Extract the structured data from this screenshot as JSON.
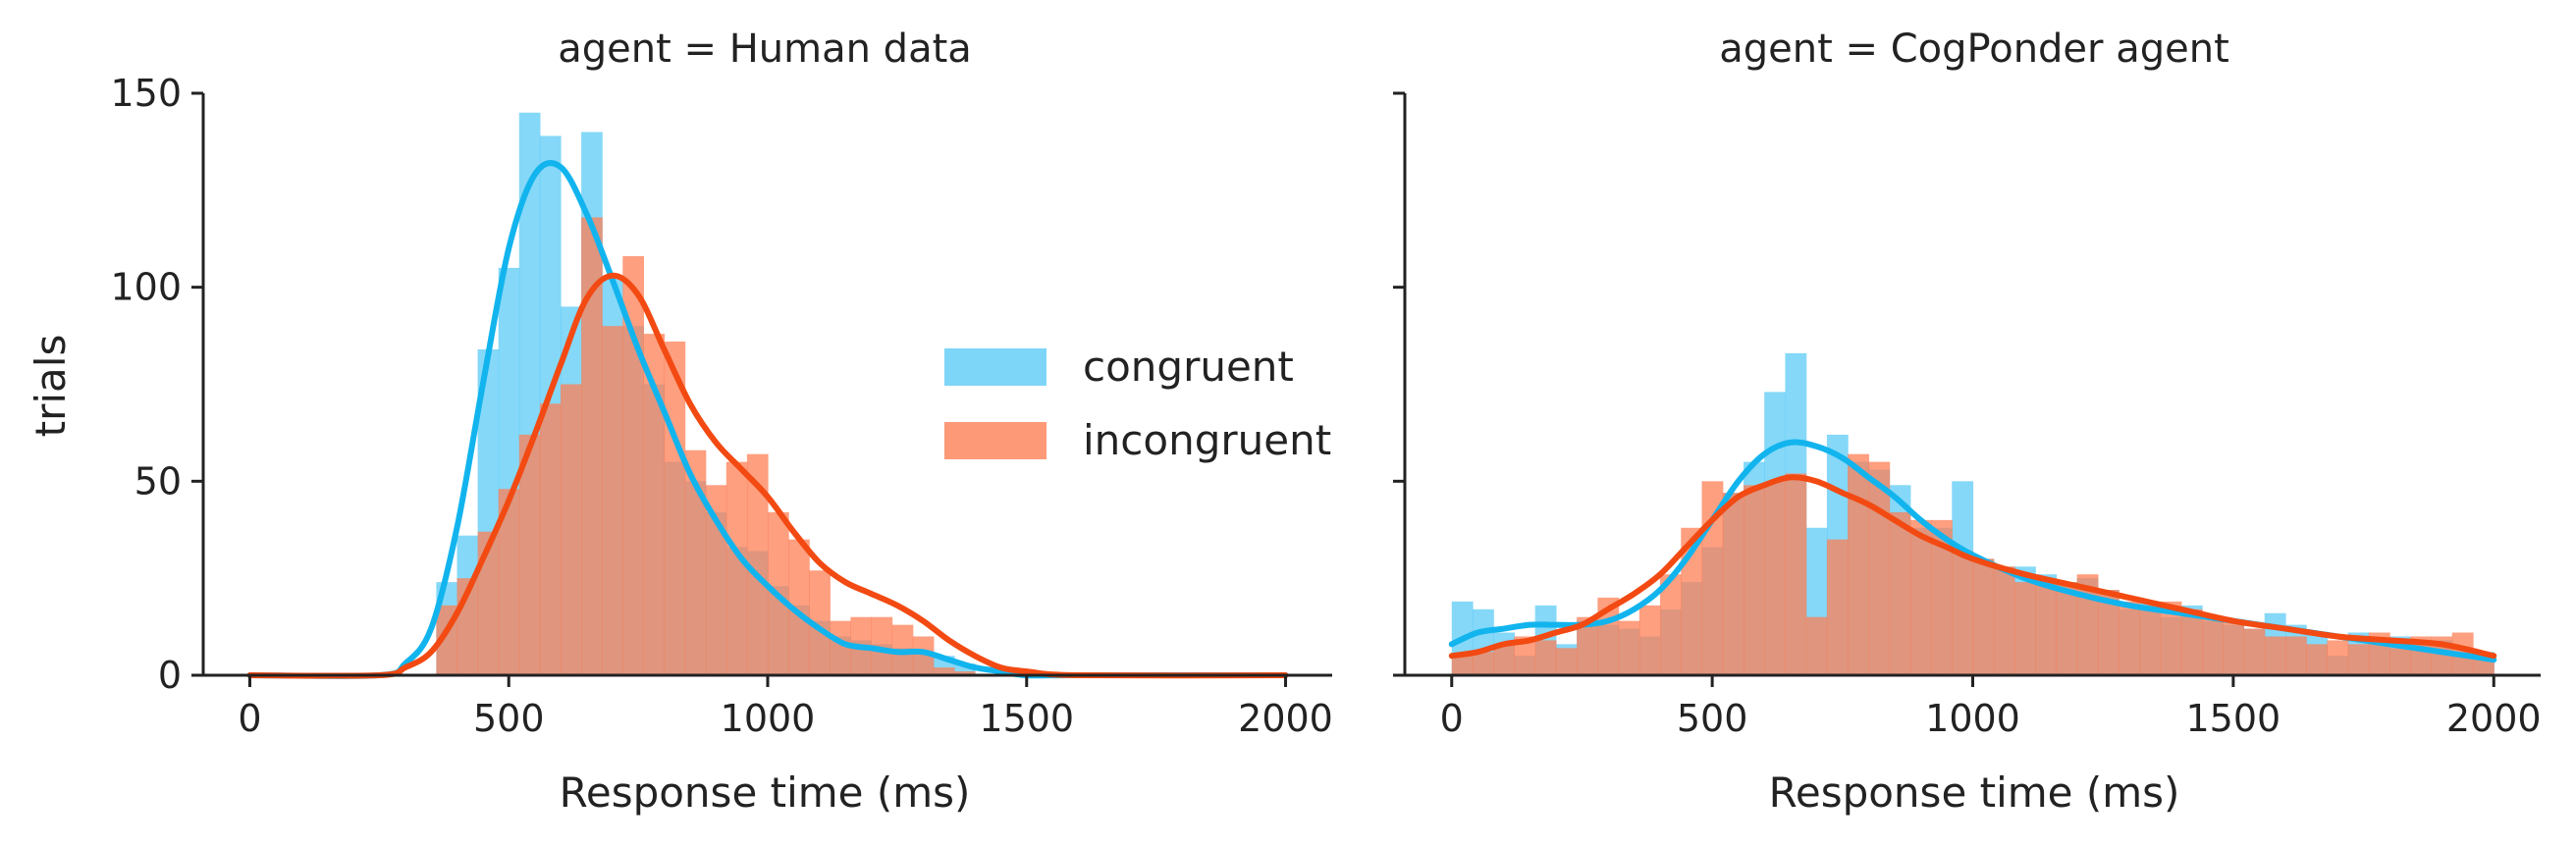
{
  "colors": {
    "congruent": "#5ccbf5",
    "incongruent": "#fd7f55",
    "congruent_kde": "#12b4ee",
    "incongruent_kde": "#f24a12"
  },
  "chart_data": [
    {
      "type": "bar",
      "title": "agent = Human data",
      "xlabel": "Response time (ms)",
      "ylabel": "trials",
      "xlim": [
        -90,
        2090
      ],
      "ylim": [
        0,
        150
      ],
      "xticks": [
        0,
        500,
        1000,
        1500,
        2000
      ],
      "yticks": [
        0,
        50,
        100,
        150
      ],
      "bin_width": 40,
      "legend": {
        "placement": "right",
        "entries": [
          "congruent",
          "incongruent"
        ]
      },
      "series": [
        {
          "name": "congruent",
          "bin_starts": [
            360,
            400,
            440,
            480,
            520,
            560,
            600,
            640,
            680,
            720,
            760,
            800,
            840,
            880,
            920,
            960,
            1000,
            1040,
            1080,
            1120,
            1160,
            1200,
            1240,
            1280,
            1320,
            1360
          ],
          "values": [
            24,
            36,
            84,
            105,
            145,
            139,
            95,
            140,
            103,
            90,
            75,
            55,
            50,
            42,
            33,
            32,
            23,
            18,
            14,
            10,
            9,
            8,
            7,
            6,
            5,
            3
          ],
          "kde": {
            "x": [
              0,
              250,
              300,
              350,
              400,
              450,
              500,
              550,
              600,
              650,
              700,
              750,
              800,
              850,
              900,
              950,
              1000,
              1050,
              1100,
              1150,
              1200,
              1250,
              1300,
              1350,
              1400,
              1450,
              1500,
              1600,
              2000
            ],
            "y": [
              0,
              0,
              3,
              12,
              38,
              75,
              110,
              129,
              131,
              119,
              102,
              84,
              68,
              52,
              40,
              30,
              23,
              17,
              12,
              8,
              7,
              6,
              6,
              4,
              2,
              1,
              0,
              0,
              0
            ]
          }
        },
        {
          "name": "incongruent",
          "bin_starts": [
            360,
            400,
            440,
            480,
            520,
            560,
            600,
            640,
            680,
            720,
            760,
            800,
            840,
            880,
            920,
            960,
            1000,
            1040,
            1080,
            1120,
            1160,
            1200,
            1240,
            1280,
            1320,
            1360
          ],
          "values": [
            18,
            25,
            37,
            48,
            62,
            70,
            75,
            118,
            90,
            108,
            88,
            86,
            58,
            49,
            55,
            57,
            42,
            35,
            27,
            14,
            15,
            15,
            13,
            10,
            2,
            1
          ],
          "kde": {
            "x": [
              0,
              250,
              300,
              350,
              400,
              450,
              500,
              550,
              600,
              650,
              700,
              750,
              800,
              850,
              900,
              950,
              1000,
              1050,
              1100,
              1150,
              1200,
              1250,
              1300,
              1350,
              1400,
              1450,
              1500,
              1600,
              2000
            ],
            "y": [
              0,
              0,
              2,
              6,
              16,
              30,
              45,
              62,
              80,
              97,
              103,
              98,
              84,
              70,
              60,
              53,
              46,
              37,
              29,
              24,
              21,
              18,
              14,
              9,
              5,
              2,
              1,
              0,
              0
            ]
          }
        }
      ]
    },
    {
      "type": "bar",
      "title": "agent = CogPonder agent",
      "xlabel": "Response time (ms)",
      "ylabel": "",
      "xlim": [
        -90,
        2090
      ],
      "ylim": [
        0,
        150
      ],
      "xticks": [
        0,
        500,
        1000,
        1500,
        2000
      ],
      "yticks": [
        0,
        50,
        100,
        150
      ],
      "show_ytick_labels": false,
      "bin_width": 40,
      "series": [
        {
          "name": "congruent",
          "bin_starts": [
            0,
            40,
            80,
            120,
            160,
            200,
            240,
            280,
            320,
            360,
            400,
            440,
            480,
            520,
            560,
            600,
            640,
            680,
            720,
            760,
            800,
            840,
            880,
            920,
            960,
            1000,
            1040,
            1080,
            1120,
            1160,
            1200,
            1240,
            1280,
            1320,
            1360,
            1400,
            1440,
            1480,
            1520,
            1560,
            1600,
            1640,
            1680,
            1720,
            1760,
            1800,
            1840,
            1880,
            1920,
            1960
          ],
          "values": [
            19,
            17,
            11,
            5,
            18,
            8,
            14,
            13,
            12,
            10,
            17,
            24,
            33,
            47,
            55,
            73,
            83,
            38,
            62,
            55,
            53,
            49,
            38,
            38,
            50,
            30,
            28,
            28,
            26,
            24,
            25,
            22,
            17,
            19,
            15,
            18,
            14,
            13,
            12,
            16,
            13,
            11,
            5,
            11,
            9,
            10,
            8,
            9,
            6,
            6
          ],
          "kde": {
            "x": [
              0,
              50,
              100,
              150,
              200,
              250,
              300,
              350,
              400,
              450,
              500,
              550,
              600,
              650,
              700,
              750,
              800,
              850,
              900,
              950,
              1000,
              1100,
              1200,
              1300,
              1400,
              1500,
              1600,
              1700,
              1800,
              1900,
              2000
            ],
            "y": [
              8,
              11,
              12,
              13,
              13,
              13,
              14,
              17,
              22,
              30,
              40,
              50,
              57,
              60,
              59,
              56,
              51,
              46,
              40,
              35,
              31,
              25,
              21,
              18,
              16,
              14,
              12,
              10,
              8,
              6,
              4
            ]
          }
        },
        {
          "name": "incongruent",
          "bin_starts": [
            0,
            40,
            80,
            120,
            160,
            200,
            240,
            280,
            320,
            360,
            400,
            440,
            480,
            520,
            560,
            600,
            640,
            680,
            720,
            760,
            800,
            840,
            880,
            920,
            960,
            1000,
            1040,
            1080,
            1120,
            1160,
            1200,
            1240,
            1280,
            1320,
            1360,
            1400,
            1440,
            1480,
            1520,
            1560,
            1600,
            1640,
            1680,
            1720,
            1760,
            1800,
            1840,
            1880,
            1920,
            1960
          ],
          "values": [
            5,
            6,
            8,
            10,
            9,
            7,
            15,
            20,
            14,
            18,
            26,
            38,
            50,
            47,
            49,
            50,
            52,
            15,
            35,
            57,
            55,
            42,
            40,
            40,
            32,
            30,
            28,
            24,
            25,
            24,
            26,
            22,
            19,
            18,
            19,
            17,
            15,
            14,
            12,
            10,
            10,
            8,
            9,
            8,
            11,
            7,
            10,
            10,
            11,
            5
          ],
          "kde": {
            "x": [
              0,
              50,
              100,
              150,
              200,
              250,
              300,
              350,
              400,
              450,
              500,
              550,
              600,
              650,
              700,
              750,
              800,
              850,
              900,
              950,
              1000,
              1100,
              1200,
              1300,
              1400,
              1500,
              1600,
              1700,
              1800,
              1900,
              2000
            ],
            "y": [
              5,
              6,
              8,
              9,
              11,
              13,
              17,
              21,
              26,
              33,
              40,
              46,
              49,
              51,
              50,
              47,
              44,
              40,
              36,
              33,
              30,
              26,
              23,
              20,
              17,
              14,
              12,
              10,
              9,
              8,
              5
            ]
          }
        }
      ]
    }
  ]
}
